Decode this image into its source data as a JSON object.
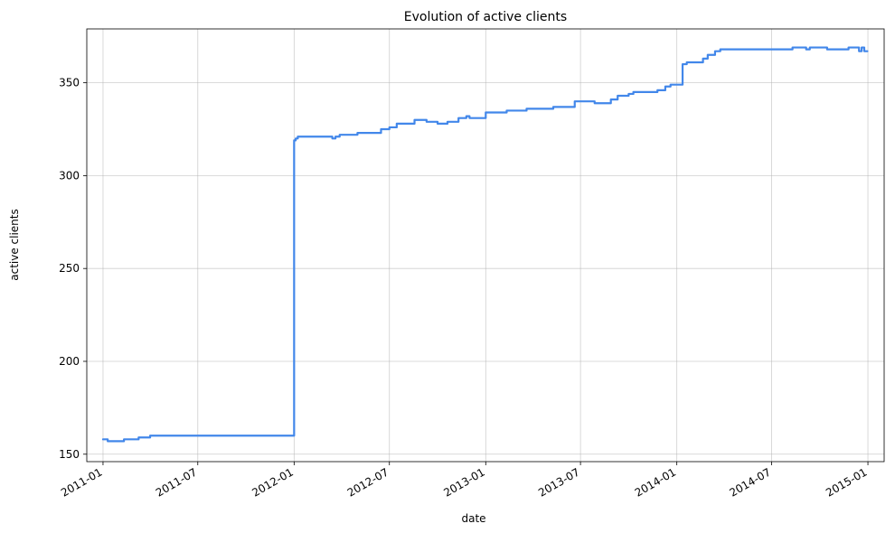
{
  "chart_data": {
    "type": "line",
    "title": "Evolution of active clients",
    "xlabel": "date",
    "ylabel": "active clients",
    "xlim": [
      "2010-12-01",
      "2015-02-01"
    ],
    "ylim": [
      146,
      379
    ],
    "grid": true,
    "x_ticks": [
      "2011-01",
      "2011-07",
      "2012-01",
      "2012-07",
      "2013-01",
      "2013-07",
      "2014-01",
      "2014-07",
      "2015-01"
    ],
    "y_ticks": [
      150,
      200,
      250,
      300,
      350
    ],
    "series": [
      {
        "color": "#4287ea",
        "points": [
          [
            "2011-01-01",
            158
          ],
          [
            "2011-01-10",
            157
          ],
          [
            "2011-02-10",
            158
          ],
          [
            "2011-03-10",
            159
          ],
          [
            "2011-04-01",
            160
          ],
          [
            "2011-05-01",
            160
          ],
          [
            "2011-06-01",
            160
          ],
          [
            "2011-07-01",
            160
          ],
          [
            "2011-08-01",
            160
          ],
          [
            "2011-09-01",
            160
          ],
          [
            "2011-10-01",
            160
          ],
          [
            "2011-11-01",
            160
          ],
          [
            "2011-12-20",
            160
          ],
          [
            "2011-12-31",
            160
          ],
          [
            "2012-01-01",
            319
          ],
          [
            "2012-01-04",
            320
          ],
          [
            "2012-01-08",
            321
          ],
          [
            "2012-02-15",
            321
          ],
          [
            "2012-03-14",
            320
          ],
          [
            "2012-03-20",
            321
          ],
          [
            "2012-03-28",
            322
          ],
          [
            "2012-04-20",
            322
          ],
          [
            "2012-05-01",
            323
          ],
          [
            "2012-06-01",
            323
          ],
          [
            "2012-06-15",
            325
          ],
          [
            "2012-07-01",
            326
          ],
          [
            "2012-07-15",
            328
          ],
          [
            "2012-08-10",
            328
          ],
          [
            "2012-08-18",
            330
          ],
          [
            "2012-09-10",
            329
          ],
          [
            "2012-10-01",
            328
          ],
          [
            "2012-10-20",
            329
          ],
          [
            "2012-11-10",
            331
          ],
          [
            "2012-11-25",
            332
          ],
          [
            "2012-12-01",
            331
          ],
          [
            "2012-12-31",
            331
          ],
          [
            "2013-01-01",
            334
          ],
          [
            "2013-02-01",
            334
          ],
          [
            "2013-02-10",
            335
          ],
          [
            "2013-03-10",
            335
          ],
          [
            "2013-03-20",
            336
          ],
          [
            "2013-05-01",
            336
          ],
          [
            "2013-05-10",
            337
          ],
          [
            "2013-06-10",
            337
          ],
          [
            "2013-06-20",
            340
          ],
          [
            "2013-07-20",
            340
          ],
          [
            "2013-07-28",
            339
          ],
          [
            "2013-08-20",
            339
          ],
          [
            "2013-08-28",
            341
          ],
          [
            "2013-09-10",
            343
          ],
          [
            "2013-10-01",
            344
          ],
          [
            "2013-10-10",
            345
          ],
          [
            "2013-11-15",
            345
          ],
          [
            "2013-11-25",
            346
          ],
          [
            "2013-12-10",
            348
          ],
          [
            "2013-12-20",
            349
          ],
          [
            "2014-01-10",
            349
          ],
          [
            "2014-01-12",
            360
          ],
          [
            "2014-01-20",
            361
          ],
          [
            "2014-02-10",
            361
          ],
          [
            "2014-02-20",
            363
          ],
          [
            "2014-03-01",
            365
          ],
          [
            "2014-03-15",
            367
          ],
          [
            "2014-03-25",
            368
          ],
          [
            "2014-05-01",
            368
          ],
          [
            "2014-06-01",
            368
          ],
          [
            "2014-07-01",
            368
          ],
          [
            "2014-08-05",
            368
          ],
          [
            "2014-08-10",
            369
          ],
          [
            "2014-08-28",
            369
          ],
          [
            "2014-09-05",
            368
          ],
          [
            "2014-09-12",
            369
          ],
          [
            "2014-10-05",
            369
          ],
          [
            "2014-10-15",
            368
          ],
          [
            "2014-11-20",
            368
          ],
          [
            "2014-11-25",
            369
          ],
          [
            "2014-12-10",
            369
          ],
          [
            "2014-12-15",
            367
          ],
          [
            "2014-12-20",
            369
          ],
          [
            "2014-12-25",
            367
          ],
          [
            "2014-12-31",
            367
          ]
        ]
      }
    ]
  }
}
